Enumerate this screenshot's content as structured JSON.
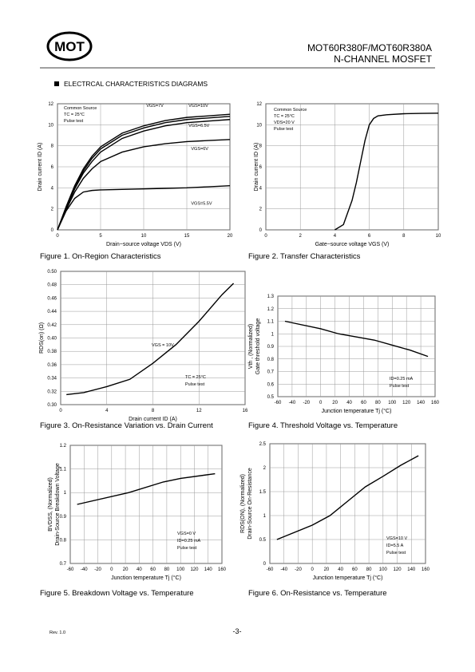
{
  "header": {
    "logo": "MOT",
    "part_number": "MOT60R380F/MOT60R380A",
    "device_type": "N-CHANNEL MOSFET"
  },
  "section_title": "ELECTRCAL CHARACTERISTICS DIAGRAMS",
  "chart_data": [
    {
      "type": "line",
      "title": "Figure 1. On-Region Characteristics",
      "xlabel": "Drain−source voltage VDS (V)",
      "ylabel": [
        "Drain current ID (A)"
      ],
      "x": [
        0,
        1,
        2,
        3,
        4,
        5,
        7.5,
        10,
        12.5,
        15,
        17.5,
        20
      ],
      "series": [
        {
          "name": "VGS=10V",
          "color": "#000000",
          "values": [
            0,
            2.2,
            4.2,
            5.8,
            7.0,
            7.9,
            9.2,
            9.9,
            10.4,
            10.7,
            10.85,
            11.0
          ]
        },
        {
          "name": "VGS=7V",
          "color": "#000000",
          "values": [
            0,
            2.1,
            4.0,
            5.6,
            6.8,
            7.7,
            9.0,
            9.7,
            10.2,
            10.5,
            10.65,
            10.8
          ]
        },
        {
          "name": "VGS=6.5V",
          "color": "#000000",
          "values": [
            0,
            2.0,
            3.9,
            5.4,
            6.5,
            7.4,
            8.7,
            9.4,
            9.9,
            10.2,
            10.35,
            10.5
          ]
        },
        {
          "name": "VGS=6V",
          "color": "#000000",
          "values": [
            0,
            1.9,
            3.6,
            4.9,
            5.8,
            6.5,
            7.4,
            7.9,
            8.2,
            8.4,
            8.5,
            8.6
          ]
        },
        {
          "name": "VGS=5.5V",
          "color": "#000000",
          "values": [
            0,
            1.8,
            3.0,
            3.6,
            3.75,
            3.8,
            3.85,
            3.9,
            3.95,
            4.0,
            4.1,
            4.2
          ]
        }
      ],
      "xlim": [
        0,
        20
      ],
      "ylim": [
        0,
        12
      ],
      "xticks": [
        0,
        5,
        10,
        15,
        20
      ],
      "yticks": [
        0,
        2,
        4,
        6,
        8,
        10,
        12
      ],
      "grid": true,
      "annotations": [
        "Common Source",
        "TC = 25°C",
        "Pulse test"
      ]
    },
    {
      "type": "line",
      "title": "Figure 2. Transfer Characteristics",
      "xlabel": "Gate−source voltage VGS (V)",
      "ylabel": [
        "Drain current ID (A)"
      ],
      "x": [
        4,
        4.5,
        5,
        5.25,
        5.5,
        5.75,
        6,
        6.25,
        6.5,
        7,
        8,
        9,
        10
      ],
      "values": [
        0,
        0.5,
        2.8,
        4.5,
        6.5,
        8.5,
        10,
        10.6,
        10.85,
        10.95,
        11.05,
        11.08,
        11.1
      ],
      "color": "#000000",
      "xlim": [
        0,
        10
      ],
      "ylim": [
        0,
        12
      ],
      "xticks": [
        0,
        2,
        4,
        6,
        8,
        10
      ],
      "yticks": [
        0,
        2,
        4,
        6,
        8,
        10,
        12
      ],
      "grid": true,
      "annotations": [
        "Common Source",
        "TC = 25°C",
        "VDS=20 V",
        "Pulse test"
      ]
    },
    {
      "type": "line",
      "title": "Figure 3. On-Resistance Variation vs. Drain Current",
      "xlabel": "Drain current ID (A)",
      "ylabel": [
        "RDS(on) (Ω)"
      ],
      "x": [
        0.5,
        2,
        4,
        6,
        8,
        10,
        12,
        14,
        15
      ],
      "values": [
        0.315,
        0.318,
        0.327,
        0.338,
        0.362,
        0.39,
        0.425,
        0.465,
        0.482
      ],
      "color": "#000000",
      "xlim": [
        0,
        16
      ],
      "ylim": [
        0.3,
        0.5
      ],
      "xticks": [
        0,
        4,
        8,
        12,
        16
      ],
      "yticks": [
        {
          "value": 0.3,
          "label": "0.30"
        },
        0.32,
        0.34,
        0.36,
        0.38,
        {
          "value": 0.4,
          "label": "0.40"
        },
        0.42,
        0.44,
        0.46,
        0.48,
        {
          "value": 0.5,
          "label": "0.50"
        }
      ],
      "grid": true,
      "annotations": [
        "VGS = 10V",
        "TC = 25°C",
        "Pulse test"
      ]
    },
    {
      "type": "line",
      "title": "Figure 4. Threshold Voltage vs. Temperature",
      "xlabel": "Junction temperature Tj (°C)",
      "ylabel": [
        "Vth , (Normalized)",
        "Gate threshold voltage"
      ],
      "x": [
        -50,
        0,
        25,
        75,
        100,
        125,
        150
      ],
      "values": [
        1.1,
        1.04,
        1.0,
        0.95,
        0.91,
        0.87,
        0.82
      ],
      "color": "#000000",
      "xlim": [
        -60,
        160
      ],
      "ylim": [
        0.5,
        1.3
      ],
      "xticks": [
        -60,
        -40,
        -20,
        0,
        20,
        40,
        60,
        80,
        100,
        120,
        140,
        160
      ],
      "yticks": [
        0.5,
        0.6,
        0.7,
        0.8,
        0.9,
        1,
        1.1,
        1.2,
        1.3
      ],
      "grid": true,
      "annotations": [
        "ID=0.25 mA",
        "Pulse test"
      ]
    },
    {
      "type": "line",
      "title": "Figure 5. Breakdown Voltage vs. Temperature",
      "xlabel": "Junction temperature Tj (°C)",
      "ylabel": [
        "BVDSS, (Normalized)",
        "Drain-Source Breakdown Voltage"
      ],
      "x": [
        -50,
        25,
        75,
        100,
        150
      ],
      "values": [
        0.95,
        1.0,
        1.045,
        1.06,
        1.08
      ],
      "color": "#000000",
      "xlim": [
        -60,
        160
      ],
      "ylim": [
        0.7,
        1.2
      ],
      "xticks": [
        -60,
        -40,
        -20,
        0,
        20,
        40,
        60,
        80,
        100,
        120,
        140,
        160
      ],
      "yticks": [
        0.7,
        0.8,
        0.9,
        1,
        1.1,
        1.2
      ],
      "grid": true,
      "annotations": [
        "VGS=0 V",
        "ID=0.25 mA",
        "Pulse test"
      ]
    },
    {
      "type": "line",
      "title": "Figure 6. On-Resistance vs. Temperature",
      "xlabel": "Junction temperature Tj (°C)",
      "ylabel": [
        "RDS(ON), (Normalized)",
        "Drain-Source On-Resistance"
      ],
      "x": [
        -50,
        0,
        25,
        50,
        75,
        100,
        125,
        150
      ],
      "values": [
        0.5,
        0.8,
        1.0,
        1.3,
        1.6,
        1.82,
        2.05,
        2.25
      ],
      "color": "#000000",
      "xlim": [
        -60,
        160
      ],
      "ylim": [
        0,
        2.5
      ],
      "xticks": [
        -60,
        -40,
        -20,
        0,
        20,
        40,
        60,
        80,
        100,
        120,
        140,
        160
      ],
      "yticks": [
        0,
        0.5,
        1,
        1.5,
        2,
        2.5
      ],
      "grid": true,
      "annotations": [
        "VGS=10 V",
        "ID=5.5 A",
        "Pulse test"
      ]
    }
  ],
  "footer": {
    "revision": "Rev. 1.0",
    "page_number": "-3-"
  }
}
